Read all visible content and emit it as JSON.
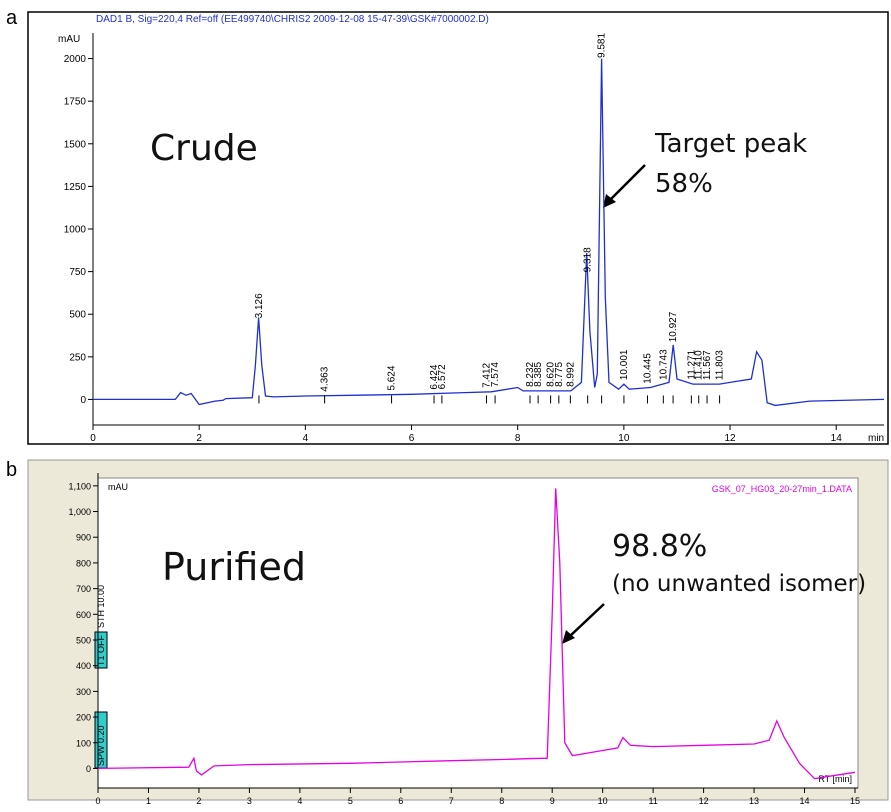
{
  "chart_data": [
    {
      "type": "line",
      "panel": "a",
      "header": "DAD1 B, Sig=220,4 Ref=off (EE499740\\CHRIS2 2009-12-08 15-47-39\\GSK#7000002.D)",
      "ylabel": "mAU",
      "xlabel": "min",
      "annotations": [
        "Crude",
        "Target peak",
        "58%"
      ],
      "peak_labels": [
        "3.126",
        "4.363",
        "5.624",
        "6.424",
        "6.572",
        "7.412",
        "7.574",
        "8.232",
        "8.385",
        "8.620",
        "8.775",
        "8.992",
        "9.318",
        "9.581",
        "10.001",
        "10.445",
        "10.743",
        "10.927",
        "11.271",
        "11.410",
        "11.567",
        "11.803"
      ],
      "x": [
        0,
        1.55,
        1.65,
        1.75,
        1.85,
        2.0,
        2.3,
        2.45,
        2.5,
        3.0,
        3.06,
        3.12,
        3.18,
        3.25,
        3.4,
        4.0,
        5.0,
        6.0,
        7.0,
        7.5,
        8.0,
        8.1,
        8.6,
        9.0,
        9.2,
        9.3,
        9.36,
        9.45,
        9.5,
        9.58,
        9.65,
        9.72,
        9.9,
        10.0,
        10.1,
        10.5,
        10.85,
        10.93,
        11.0,
        11.3,
        11.8,
        12.0,
        12.4,
        12.5,
        12.6,
        12.7,
        12.85,
        13.5,
        14.9
      ],
      "values": [
        0,
        0,
        40,
        25,
        35,
        -30,
        -10,
        -5,
        5,
        10,
        200,
        480,
        200,
        20,
        15,
        20,
        25,
        30,
        40,
        45,
        70,
        50,
        50,
        50,
        100,
        860,
        400,
        70,
        150,
        2000,
        600,
        100,
        60,
        90,
        60,
        70,
        100,
        320,
        120,
        90,
        90,
        100,
        120,
        280,
        230,
        -20,
        -35,
        -10,
        0
      ],
      "color": "#1f2fd6",
      "xlim": [
        0,
        14.9
      ],
      "ylim": [
        -150,
        2150
      ],
      "xticks": [
        0,
        2,
        4,
        6,
        8,
        10,
        12,
        14
      ],
      "yticks": [
        0,
        250,
        500,
        750,
        1000,
        1250,
        1500,
        1750,
        2000
      ]
    },
    {
      "type": "line",
      "panel": "b",
      "header": "GSK_07_HG03_20-27min_1.DATA",
      "ylabel": "mAU",
      "xlabel": "RT [min]",
      "annotations": [
        "Purified",
        "98.8%",
        "(no unwanted isomer)"
      ],
      "markers": [
        "SPW 0.20",
        "STH 10.00",
        "T1 OFF"
      ],
      "x": [
        0,
        1.8,
        1.9,
        1.95,
        2.05,
        2.3,
        3,
        5,
        6,
        7,
        8,
        8.5,
        8.9,
        9.0,
        9.07,
        9.15,
        9.25,
        9.4,
        10,
        10.3,
        10.4,
        10.55,
        11,
        12,
        13,
        13.3,
        13.45,
        13.6,
        13.9,
        14.2,
        14.5,
        15
      ],
      "values": [
        0,
        5,
        40,
        -10,
        -25,
        10,
        15,
        20,
        25,
        30,
        35,
        38,
        40,
        600,
        1090,
        800,
        100,
        50,
        70,
        80,
        120,
        90,
        85,
        90,
        95,
        110,
        185,
        120,
        20,
        -40,
        -30,
        -15
      ],
      "color": "#e600e6",
      "xlim": [
        0,
        15
      ],
      "ylim": [
        -80,
        1150
      ],
      "xticks": [
        0,
        1,
        2,
        3,
        4,
        5,
        6,
        7,
        8,
        9,
        10,
        11,
        12,
        13,
        14,
        15
      ],
      "yticks": [
        0,
        100,
        200,
        300,
        400,
        500,
        600,
        700,
        800,
        900,
        {
          "value": 1000,
          "label": "1,000"
        },
        {
          "value": 1100,
          "label": "1,100"
        }
      ]
    }
  ]
}
